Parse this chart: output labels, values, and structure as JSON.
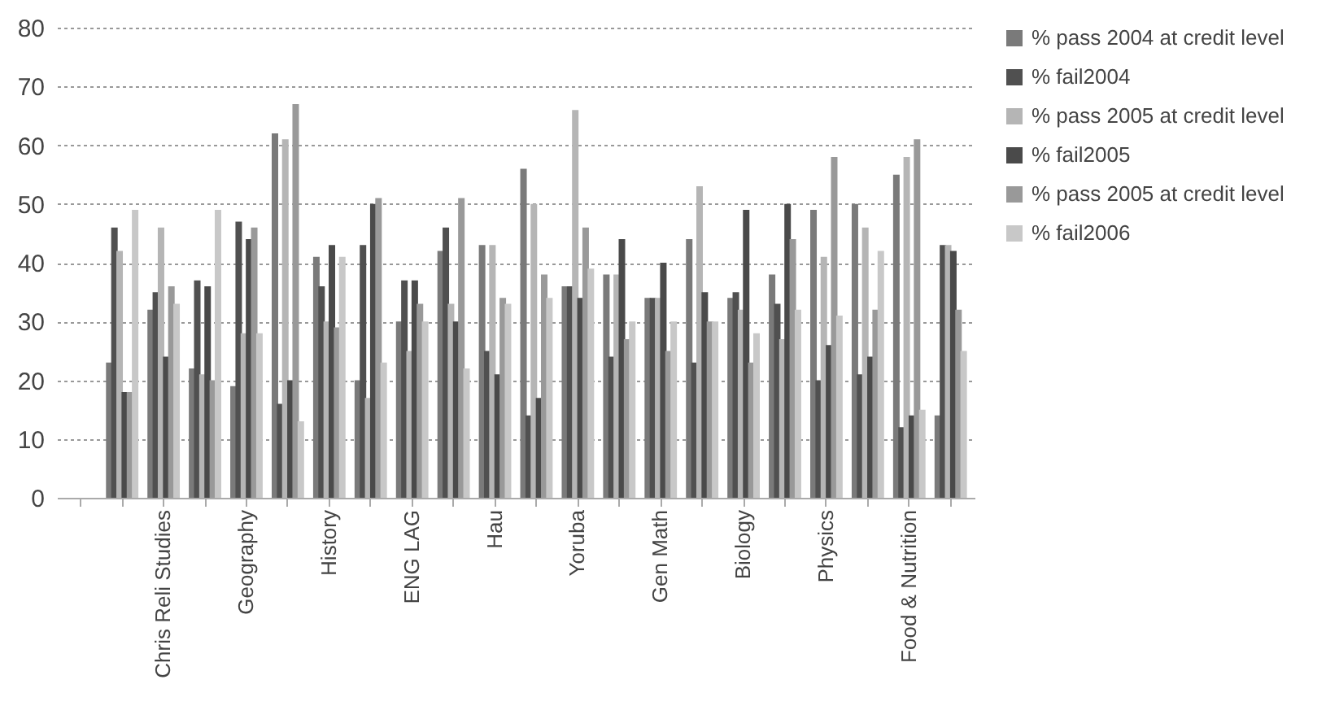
{
  "chart_data": {
    "type": "bar",
    "categories": [
      null,
      null,
      "Chris Reli Studies",
      null,
      "Geography",
      null,
      "History",
      null,
      "ENG LAG",
      null,
      "Hau",
      null,
      "Yoruba",
      null,
      "Gen Math",
      null,
      "Biology",
      null,
      "Physics",
      null,
      "Food & Nutrition",
      null
    ],
    "series": [
      {
        "name": "% pass 2004 at credit level",
        "color": "#7a7a7a",
        "values": [
          null,
          23,
          32,
          22,
          19,
          62,
          41,
          20,
          30,
          42,
          43,
          56,
          36,
          38,
          34,
          44,
          34,
          38,
          49,
          50,
          55,
          14
        ]
      },
      {
        "name": "% fail2004",
        "color": "#505050",
        "values": [
          null,
          46,
          35,
          37,
          47,
          16,
          36,
          43,
          37,
          46,
          25,
          14,
          36,
          24,
          34,
          23,
          35,
          33,
          20,
          21,
          12,
          43
        ]
      },
      {
        "name": "% pass 2005 at credit level",
        "color": "#b5b5b5",
        "values": [
          null,
          42,
          46,
          21,
          28,
          61,
          30,
          17,
          25,
          33,
          43,
          50,
          66,
          38,
          34,
          53,
          32,
          27,
          41,
          46,
          58,
          43
        ]
      },
      {
        "name": "% fail2005",
        "color": "#4a4a4a",
        "values": [
          null,
          18,
          24,
          36,
          44,
          20,
          43,
          50,
          37,
          30,
          21,
          17,
          34,
          44,
          40,
          35,
          49,
          50,
          26,
          24,
          14,
          42
        ]
      },
      {
        "name": "% pass 2005 at credit level",
        "color": "#999999",
        "values": [
          null,
          18,
          36,
          20,
          46,
          67,
          29,
          51,
          33,
          51,
          34,
          38,
          46,
          27,
          25,
          30,
          23,
          44,
          58,
          32,
          61,
          32
        ]
      },
      {
        "name": "% fail2006",
        "color": "#c8c8c8",
        "values": [
          null,
          49,
          33,
          49,
          28,
          13,
          41,
          23,
          30,
          22,
          33,
          34,
          39,
          30,
          30,
          30,
          28,
          32,
          31,
          42,
          15,
          25
        ]
      }
    ],
    "ylim": [
      0,
      80
    ],
    "yticks": [
      0,
      10,
      20,
      30,
      40,
      50,
      60,
      70,
      80
    ],
    "grid": "y",
    "legend": "right"
  }
}
